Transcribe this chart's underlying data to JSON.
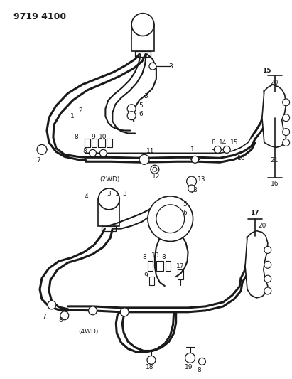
{
  "title": "9719 4100",
  "bg_color": "#ffffff",
  "line_color": "#1a1a1a",
  "title_fontsize": 9,
  "label_fontsize": 6.5,
  "fig_w": 4.11,
  "fig_h": 5.33,
  "dpi": 100
}
